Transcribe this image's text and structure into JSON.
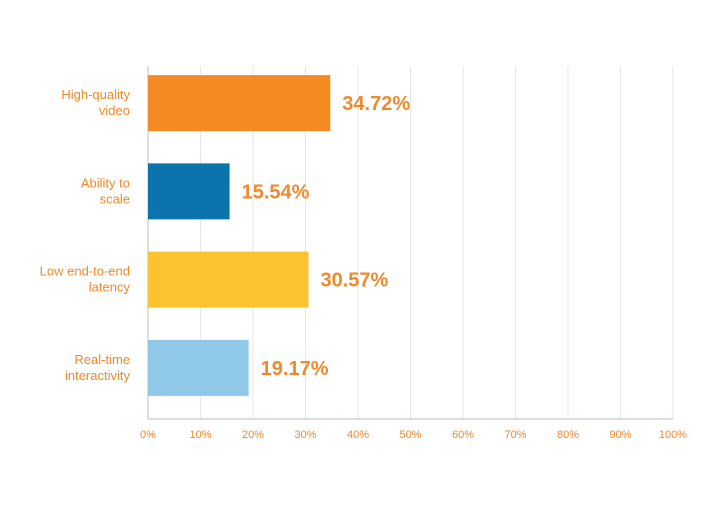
{
  "chart_data": {
    "type": "bar",
    "orientation": "horizontal",
    "categories": [
      "High-quality video",
      "Ability to scale",
      "Low end-to-end latency",
      "Real-time interactivity"
    ],
    "category_lines": [
      [
        "High-quality",
        "video"
      ],
      [
        "Ability to",
        "scale"
      ],
      [
        "Low end-to-end",
        "latency"
      ],
      [
        "Real-time",
        "interactivity"
      ]
    ],
    "values": [
      34.72,
      15.54,
      30.57,
      19.17
    ],
    "value_labels": [
      "34.72%",
      "15.54%",
      "30.57%",
      "19.17%"
    ],
    "bar_colors": [
      "#f58a22",
      "#0b74ac",
      "#fdc22f",
      "#90c8ea"
    ],
    "xlim": [
      0,
      100
    ],
    "ticks": [
      0,
      10,
      20,
      30,
      40,
      50,
      60,
      70,
      80,
      90,
      100
    ],
    "tick_labels": [
      "0%",
      "10%",
      "20%",
      "30%",
      "40%",
      "50%",
      "60%",
      "70%",
      "80%",
      "90%",
      "100%"
    ],
    "grid": true,
    "legend": "none",
    "label_color": "#f0892a",
    "grid_color": "#e6e6e6",
    "axis_color": "#bdbdbd"
  }
}
